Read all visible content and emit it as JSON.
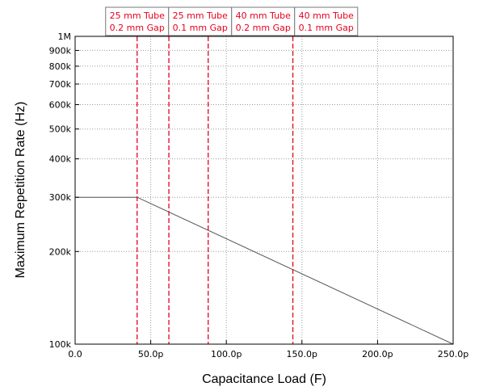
{
  "chart_data": {
    "type": "line",
    "title": "",
    "xlabel": "Capacitance Load (F)",
    "ylabel": "Maximum Repetition Rate (Hz)",
    "xscale": "linear",
    "yscale": "log",
    "xlim": [
      0,
      250
    ],
    "x_unit": "pF",
    "ylim": [
      100000,
      1000000
    ],
    "grid": true,
    "legend": "none",
    "x_ticks": [
      {
        "value": 0,
        "label": "0.0"
      },
      {
        "value": 50,
        "label": "50.0p"
      },
      {
        "value": 100,
        "label": "100.0p"
      },
      {
        "value": 150,
        "label": "150.0p"
      },
      {
        "value": 200,
        "label": "200.0p"
      },
      {
        "value": 250,
        "label": "250.0p"
      }
    ],
    "y_ticks": [
      {
        "value": 100000,
        "label": "100k"
      },
      {
        "value": 200000,
        "label": "200k"
      },
      {
        "value": 300000,
        "label": "300k"
      },
      {
        "value": 400000,
        "label": "400k"
      },
      {
        "value": 500000,
        "label": "500k"
      },
      {
        "value": 600000,
        "label": "600k"
      },
      {
        "value": 700000,
        "label": "700k"
      },
      {
        "value": 800000,
        "label": "800k"
      },
      {
        "value": 900000,
        "label": "900k"
      },
      {
        "value": 1000000,
        "label": "1M"
      }
    ],
    "series": [
      {
        "color": "#555555",
        "points": [
          {
            "x": 0,
            "y": 300000
          },
          {
            "x": 41,
            "y": 300000
          },
          {
            "x": 250,
            "y": 100000
          }
        ]
      }
    ],
    "markers": [
      {
        "x": 41,
        "line1": "25 mm Tube",
        "line2": "0.2 mm Gap"
      },
      {
        "x": 62,
        "line1": "25 mm Tube",
        "line2": "0.1 mm Gap"
      },
      {
        "x": 88,
        "line1": "40 mm Tube",
        "line2": "0.2 mm Gap"
      },
      {
        "x": 144,
        "line1": "40 mm Tube",
        "line2": "0.1 mm Gap"
      }
    ],
    "marker_color": "#e8001c"
  }
}
